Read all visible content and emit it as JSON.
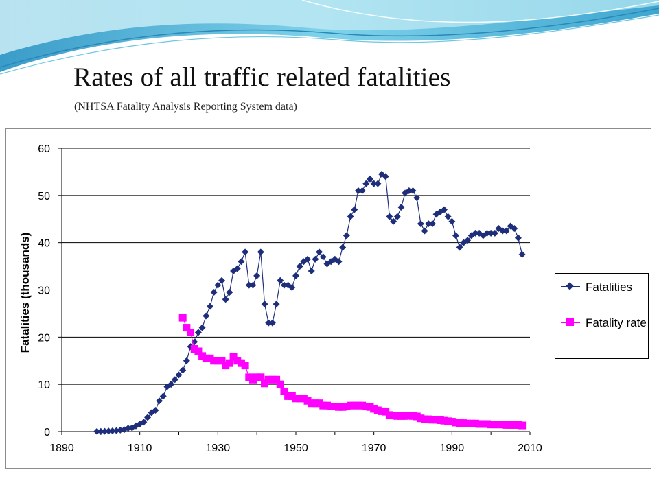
{
  "slide": {
    "title": "Rates of all traffic related fatalities",
    "subtitle": "(NHTSA Fatality Analysis Reporting System data)"
  },
  "colors": {
    "fatalities": "#1F2E7A",
    "fatality_rate": "#FF00FF",
    "banner_light": "#BFE8F2",
    "banner_mid": "#5BC3E0",
    "banner_dark": "#2F8FBF"
  },
  "chart_data": {
    "type": "line",
    "title": "",
    "xlabel": "",
    "ylabel": "Fatalities (thousands)",
    "xlim": [
      1890,
      2010
    ],
    "ylim": [
      0,
      60
    ],
    "x_ticks": [
      "1890",
      "1910",
      "1930",
      "1950",
      "1970",
      "1990",
      "2010"
    ],
    "y_ticks": [
      "0",
      "10",
      "20",
      "30",
      "40",
      "50",
      "60"
    ],
    "grid": true,
    "legend_position": "right",
    "series": [
      {
        "name": "Fatalities",
        "marker": "diamond",
        "color": "#1F2E7A",
        "x": [
          1899,
          1900,
          1901,
          1902,
          1903,
          1904,
          1905,
          1906,
          1907,
          1908,
          1909,
          1910,
          1911,
          1912,
          1913,
          1914,
          1915,
          1916,
          1917,
          1918,
          1919,
          1920,
          1921,
          1922,
          1923,
          1924,
          1925,
          1926,
          1927,
          1928,
          1929,
          1930,
          1931,
          1932,
          1933,
          1934,
          1935,
          1936,
          1937,
          1938,
          1939,
          1940,
          1941,
          1942,
          1943,
          1944,
          1945,
          1946,
          1947,
          1948,
          1949,
          1950,
          1951,
          1952,
          1953,
          1954,
          1955,
          1956,
          1957,
          1958,
          1959,
          1960,
          1961,
          1962,
          1963,
          1964,
          1965,
          1966,
          1967,
          1968,
          1969,
          1970,
          1971,
          1972,
          1973,
          1974,
          1975,
          1976,
          1977,
          1978,
          1979,
          1980,
          1981,
          1982,
          1983,
          1984,
          1985,
          1986,
          1987,
          1988,
          1989,
          1990,
          1991,
          1992,
          1993,
          1994,
          1995,
          1996,
          1997,
          1998,
          1999,
          2000,
          2001,
          2002,
          2003,
          2004,
          2005,
          2006,
          2007,
          2008
        ],
        "y": [
          0.03,
          0.04,
          0.05,
          0.1,
          0.15,
          0.2,
          0.3,
          0.4,
          0.7,
          0.8,
          1.2,
          1.6,
          2.0,
          3.0,
          4.0,
          4.5,
          6.5,
          7.5,
          9.5,
          10.0,
          11.0,
          12.0,
          13.0,
          15.0,
          18.0,
          19.0,
          21.0,
          22.0,
          24.5,
          26.5,
          29.5,
          31.0,
          32.0,
          28.0,
          29.5,
          34.0,
          34.5,
          36.0,
          38.0,
          31.0,
          31.0,
          33.0,
          38.0,
          27.0,
          23.0,
          23.0,
          27.0,
          32.0,
          31.0,
          31.0,
          30.5,
          33.0,
          35.0,
          36.0,
          36.5,
          34.0,
          36.5,
          38.0,
          37.0,
          35.5,
          36.0,
          36.5,
          36.0,
          39.0,
          41.5,
          45.5,
          47.0,
          51.0,
          51.0,
          52.5,
          53.5,
          52.5,
          52.5,
          54.5,
          54.0,
          45.5,
          44.5,
          45.5,
          47.5,
          50.5,
          51.0,
          51.0,
          49.5,
          44.0,
          42.5,
          44.0,
          44.0,
          46.0,
          46.5,
          47.0,
          45.5,
          44.5,
          41.5,
          39.0,
          40.0,
          40.5,
          41.5,
          42.0,
          42.0,
          41.5,
          42.0,
          42.0,
          42.0,
          43.0,
          42.5,
          42.5,
          43.5,
          43.0,
          41.0,
          37.5
        ]
      },
      {
        "name": "Fatality rate",
        "marker": "square",
        "color": "#FF00FF",
        "x": [
          1921,
          1922,
          1923,
          1924,
          1925,
          1926,
          1927,
          1928,
          1929,
          1930,
          1931,
          1932,
          1933,
          1934,
          1935,
          1936,
          1937,
          1938,
          1939,
          1940,
          1941,
          1942,
          1943,
          1944,
          1945,
          1946,
          1947,
          1948,
          1949,
          1950,
          1951,
          1952,
          1953,
          1954,
          1955,
          1956,
          1957,
          1958,
          1959,
          1960,
          1961,
          1962,
          1963,
          1964,
          1965,
          1966,
          1967,
          1968,
          1969,
          1970,
          1971,
          1972,
          1973,
          1974,
          1975,
          1976,
          1977,
          1978,
          1979,
          1980,
          1981,
          1982,
          1983,
          1984,
          1985,
          1986,
          1987,
          1988,
          1989,
          1990,
          1991,
          1992,
          1993,
          1994,
          1995,
          1996,
          1997,
          1998,
          1999,
          2000,
          2001,
          2002,
          2003,
          2004,
          2005,
          2006,
          2007,
          2008
        ],
        "y": [
          24.1,
          22.0,
          21.0,
          17.5,
          17.0,
          16.0,
          15.5,
          15.5,
          15.0,
          15.0,
          15.0,
          14.0,
          14.5,
          15.8,
          15.0,
          14.5,
          14.0,
          11.5,
          11.0,
          11.5,
          11.5,
          10.2,
          11.0,
          11.0,
          11.0,
          10.0,
          8.5,
          7.5,
          7.5,
          7.0,
          7.0,
          7.0,
          6.5,
          6.0,
          6.0,
          6.0,
          5.5,
          5.5,
          5.3,
          5.3,
          5.2,
          5.2,
          5.3,
          5.5,
          5.5,
          5.5,
          5.5,
          5.3,
          5.2,
          4.8,
          4.5,
          4.3,
          4.2,
          3.5,
          3.4,
          3.3,
          3.3,
          3.3,
          3.4,
          3.3,
          3.2,
          2.8,
          2.6,
          2.6,
          2.5,
          2.5,
          2.4,
          2.3,
          2.2,
          2.1,
          1.9,
          1.8,
          1.8,
          1.7,
          1.7,
          1.7,
          1.6,
          1.6,
          1.6,
          1.5,
          1.5,
          1.5,
          1.5,
          1.4,
          1.4,
          1.4,
          1.4,
          1.3
        ]
      }
    ]
  }
}
